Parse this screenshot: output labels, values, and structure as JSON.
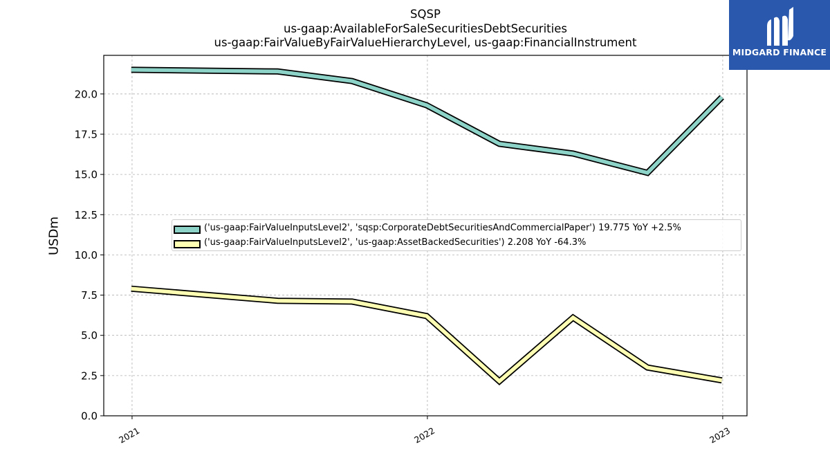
{
  "header": {
    "title_lines": [
      "SQSP",
      "us-gaap:AvailableForSaleSecuritiesDebtSecurities",
      "us-gaap:FairValueByFairValueHierarchyLevel, us-gaap:FinancialInstrument"
    ]
  },
  "logo": {
    "text": "MIDGARD FINANCE",
    "icon": "midgard-logo-icon",
    "background": "#2a58ad"
  },
  "chart_data": {
    "type": "line",
    "title": "SQSP\nus-gaap:AvailableForSaleSecuritiesDebtSecurities\nus-gaap:FairValueByFairValueHierarchyLevel, us-gaap:FinancialInstrument",
    "xlabel": "",
    "ylabel": "USDm",
    "x_tick_labels": [
      "2021",
      "2022",
      "2023"
    ],
    "y_tick_labels": [
      "0.0",
      "2.5",
      "5.0",
      "7.5",
      "10.0",
      "12.5",
      "15.0",
      "17.5",
      "20.0"
    ],
    "y_ticks": [
      0,
      2.5,
      5,
      7.5,
      10,
      12.5,
      15,
      17.5,
      20
    ],
    "ylim": [
      0,
      22.4
    ],
    "xlim": [
      "2020-11-27",
      "2023-01-31"
    ],
    "grid": true,
    "legend_position": "center-right",
    "series": [
      {
        "name": "('us-gaap:FairValueInputsLevel2', 'sqsp:CorporateDebtSecuritiesAndCommercialPaper') 19.775 YoY +2.5%",
        "color": "#8dd3c7",
        "x": [
          "2020-12-31",
          "2021-06-30",
          "2021-09-30",
          "2021-12-31",
          "2022-03-31",
          "2022-06-30",
          "2022-09-30",
          "2022-12-31"
        ],
        "values": [
          21.5,
          21.4,
          20.8,
          19.3,
          16.9,
          16.3,
          15.1,
          19.8
        ]
      },
      {
        "name": "('us-gaap:FairValueInputsLevel2', 'us-gaap:AssetBackedSecurities') 2.208 YoY -64.3%",
        "color": "#ffffb3",
        "x": [
          "2020-12-31",
          "2021-06-30",
          "2021-09-30",
          "2021-12-31",
          "2022-03-31",
          "2022-06-30",
          "2022-09-30",
          "2022-12-31"
        ],
        "values": [
          7.9,
          7.15,
          7.1,
          6.2,
          2.15,
          6.1,
          3.0,
          2.2
        ]
      }
    ]
  }
}
